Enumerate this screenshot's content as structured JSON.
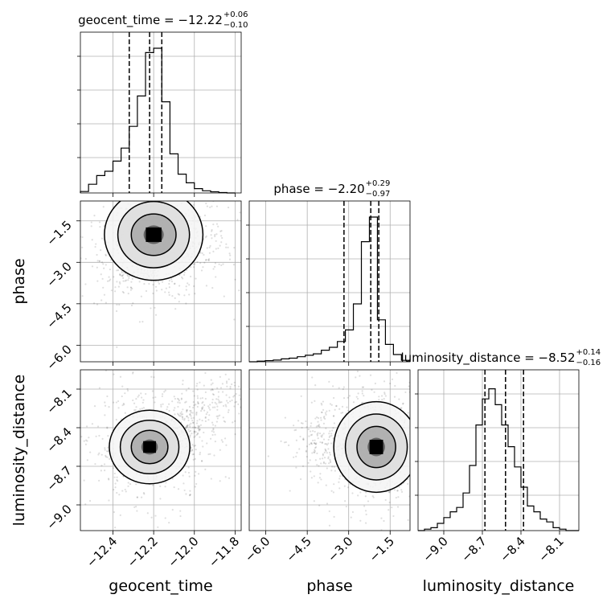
{
  "chart_data": {
    "type": "corner",
    "parameters": [
      {
        "name": "geocent_time",
        "title_main": "geocent_time = −12.22",
        "sup": "+0.06",
        "sub": "−0.10",
        "range": [
          -12.56,
          -11.77
        ],
        "ticks": [
          -12.4,
          -12.2,
          -12.0,
          -11.8
        ],
        "tick_labels": [
          "−12.4",
          "−12.2",
          "−12.0",
          "−11.8"
        ],
        "quantiles": [
          -12.32,
          -12.22,
          -12.16
        ],
        "hist_bins": {
          "start": -12.56,
          "width": 0.04
        },
        "hist": [
          0.01,
          0.06,
          0.12,
          0.15,
          0.22,
          0.31,
          0.46,
          0.67,
          0.97,
          1.0,
          0.63,
          0.27,
          0.13,
          0.07,
          0.03,
          0.015,
          0.008,
          0.003,
          0.0
        ]
      },
      {
        "name": "phase",
        "title_main": "phase = −2.20",
        "sup": "+0.29",
        "sub": "−0.97",
        "range": [
          -6.6,
          -0.78
        ],
        "ticks": [
          -6.0,
          -4.5,
          -3.0,
          -1.5
        ],
        "tick_labels": [
          "−6.0",
          "−4.5",
          "−3.0",
          "−1.5"
        ],
        "quantiles": [
          -3.17,
          -2.2,
          -1.91
        ],
        "hist_bins": {
          "start": -6.6,
          "width": 0.29
        },
        "hist": [
          0.0,
          0.004,
          0.008,
          0.012,
          0.02,
          0.025,
          0.035,
          0.045,
          0.055,
          0.08,
          0.1,
          0.14,
          0.22,
          0.4,
          0.83,
          1.0,
          0.29,
          0.12,
          0.05,
          0.01
        ]
      },
      {
        "name": "luminosity_distance",
        "title_main": "luminosity_distance = −8.52",
        "sup": "+0.14",
        "sub": "−0.16",
        "range": [
          -9.2,
          -7.95
        ],
        "ticks": [
          -9.0,
          -8.7,
          -8.4,
          -8.1
        ],
        "tick_labels": [
          "−9.0",
          "−8.7",
          "−8.4",
          "−8.1"
        ],
        "quantiles": [
          -8.68,
          -8.52,
          -8.38
        ],
        "hist_bins": {
          "start": -9.2,
          "width": 0.05
        },
        "hist": [
          0.0,
          0.01,
          0.02,
          0.05,
          0.09,
          0.13,
          0.16,
          0.26,
          0.45,
          0.73,
          0.91,
          0.98,
          0.87,
          0.73,
          0.58,
          0.44,
          0.3,
          0.17,
          0.13,
          0.08,
          0.06,
          0.02,
          0.01,
          0.0,
          0.0
        ]
      }
    ],
    "pairs": [
      {
        "x_param": "geocent_time",
        "y_param": "phase",
        "center": [
          -12.2,
          -2.0
        ],
        "spread": [
          0.11,
          0.75
        ],
        "tail": {
          "from": [
            -12.4,
            -3.4
          ],
          "to": [
            -11.95,
            -2.4
          ]
        }
      },
      {
        "x_param": "geocent_time",
        "y_param": "luminosity_distance",
        "center": [
          -12.22,
          -8.55
        ],
        "spread": [
          0.09,
          0.13
        ],
        "tail": {
          "from": [
            -12.1,
            -8.45
          ],
          "to": [
            -11.8,
            -8.1
          ]
        }
      },
      {
        "x_param": "phase",
        "y_param": "luminosity_distance",
        "center": [
          -2.0,
          -8.55
        ],
        "spread": [
          0.7,
          0.16
        ],
        "tail": {
          "from": [
            -4.5,
            -8.5
          ],
          "to": [
            -2.3,
            -8.5
          ]
        }
      }
    ],
    "contour_levels": [
      "0.5",
      "1.0",
      "1.5",
      "2.0"
    ],
    "grid": true
  }
}
